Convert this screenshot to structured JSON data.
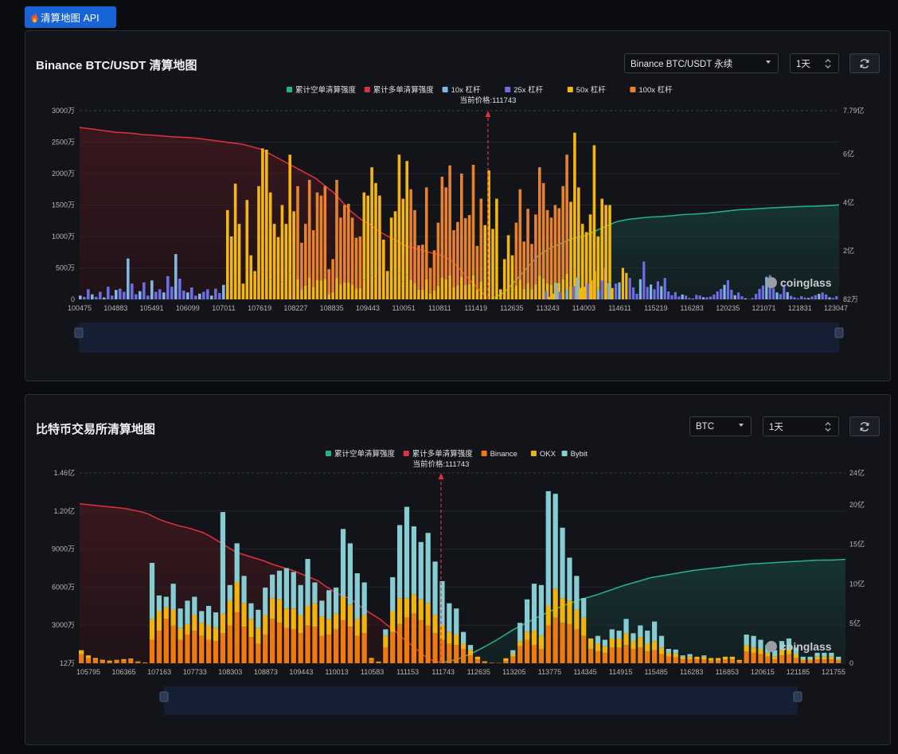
{
  "api_button": {
    "label": "清算地图 API",
    "icon": "flame-icon"
  },
  "watermark": "coinglass",
  "panel1": {
    "title": "Binance BTC/USDT 清算地图",
    "pair_select": "Binance BTC/USDT 永续",
    "range_select": "1天",
    "refresh_icon": "refresh-icon"
  },
  "panel2": {
    "title": "比特币交易所清算地图",
    "coin_select": "BTC",
    "range_select": "1天",
    "refresh_icon": "refresh-icon"
  },
  "colors": {
    "short": "#24b38a",
    "long": "#e0323e",
    "lev10": "#7fb6e2",
    "lev25": "#6d6ee6",
    "lev50": "#f4b70f",
    "lev100": "#e8822c",
    "binance": "#f07a12",
    "okx": "#f0b40a",
    "bybit": "#85cdd3"
  },
  "chart_data": [
    {
      "type": "bar",
      "current_price_label": "当前价格:111743",
      "current_price": 111743,
      "legend": [
        "累计空单清算强度",
        "累计多单清算强度",
        "10x 杠杆",
        "25x 杠杆",
        "50x 杠杆",
        "100x 杠杆"
      ],
      "y_left_ticks": [
        "0",
        "500万",
        "1000万",
        "1500万",
        "2000万",
        "2500万",
        "3000万"
      ],
      "y_left_max": 3000,
      "y_right_ticks": [
        "82万",
        "2亿",
        "4亿",
        "6亿",
        "7.79亿"
      ],
      "y_right_values": [
        0.0082,
        2,
        4,
        6,
        7.79
      ],
      "y_right_max": 7.79,
      "x_ticks": [
        "100475",
        "104883",
        "105491",
        "106099",
        "107011",
        "107619",
        "108227",
        "108835",
        "109443",
        "110051",
        "110811",
        "111419",
        "112635",
        "113243",
        "114003",
        "114611",
        "115219",
        "116283",
        "120235",
        "121071",
        "121831",
        "123047"
      ],
      "x_min": 100475,
      "x_max": 123047,
      "bars_low": [
        60,
        40,
        160,
        80,
        40,
        120,
        30,
        200,
        60,
        150,
        170,
        120,
        650,
        250,
        80,
        130,
        270,
        60,
        300,
        120,
        160,
        110,
        370,
        200,
        720,
        330,
        140,
        110,
        190,
        60,
        90,
        120,
        160,
        60,
        170,
        100,
        230
      ],
      "bars_high": [
        130,
        40,
        90,
        260,
        120,
        100,
        160,
        200,
        210,
        350,
        180,
        200,
        250,
        300,
        450,
        150,
        300,
        500,
        260,
        180,
        250,
        270,
        500,
        420,
        340,
        190,
        90,
        320,
        600,
        360,
        430,
        290,
        520,
        380,
        620,
        230,
        120,
        210,
        80,
        140,
        110,
        40,
        20,
        130,
        110,
        60,
        60,
        80,
        140,
        230,
        300,
        420,
        550,
        280,
        120,
        200,
        90,
        30,
        10,
        40,
        160,
        300,
        400,
        650,
        700,
        320,
        200,
        150,
        420,
        210,
        100,
        60,
        30,
        90,
        50,
        40,
        80,
        120,
        160,
        200,
        140,
        60,
        40,
        90,
        30
      ],
      "bars_mid": [
        1420,
        1000,
        1840,
        1200,
        250,
        1580,
        700,
        450,
        1800,
        2400,
        2380,
        1700,
        1200,
        990,
        1500,
        1200,
        2300,
        1400,
        1800,
        900,
        1200,
        1900,
        1100,
        1700,
        1650,
        1800,
        480,
        640,
        1900,
        1300,
        1500,
        1520,
        1300,
        980,
        1000,
        1700,
        1650,
        2100,
        1850,
        1650,
        950,
        450,
        1300,
        1400,
        2300,
        1600,
        2200,
        1750,
        1420,
        860,
        870,
        1780,
        500,
        780,
        1220,
        1950,
        1780,
        2130,
        1100,
        1230,
        2000,
        1290,
        1340,
        2140,
        850,
        1600,
        1180,
        2050,
        1120,
        1600,
        160,
        640,
        1020,
        700,
        1220,
        1750,
        920,
        1440,
        880,
        1350,
        2100,
        1850,
        1420,
        1300,
        1500,
        1450,
        1800,
        2300,
        1550,
        2650,
        1780,
        1200,
        1070,
        1350,
        2450,
        1000,
        1600,
        1500,
        1500,
        1200,
        1100
      ],
      "long_cum_series_yi": [
        7.1,
        7.05,
        7.0,
        6.95,
        6.9,
        6.88,
        6.85,
        6.8,
        6.78,
        6.75,
        6.72,
        6.7,
        6.68,
        6.65,
        6.6,
        6.55,
        6.5,
        6.45,
        6.4,
        6.3,
        6.2,
        6.0,
        5.8,
        5.6,
        5.4,
        5.2,
        5.0,
        4.7,
        4.4,
        4.0,
        3.6,
        3.3,
        3.1,
        2.8,
        2.6,
        2.4,
        2.2,
        2.1,
        2.0,
        1.9,
        1.8,
        1.6,
        1.2,
        0.8,
        0.4,
        0.05
      ],
      "short_cum_series_yi": [
        0.05,
        0.3,
        0.8,
        1.3,
        1.8,
        2.1,
        2.3,
        2.5,
        2.6,
        2.8,
        3.0,
        3.2,
        3.3,
        3.35,
        3.4,
        3.42,
        3.45,
        3.5,
        3.52,
        3.55,
        3.6,
        3.65,
        3.7,
        3.72,
        3.75,
        3.78,
        3.8,
        3.82,
        3.84,
        3.85,
        3.87,
        3.9
      ]
    },
    {
      "type": "bar",
      "current_price_label": "当前价格:111743",
      "current_price": 111743,
      "legend": [
        "累计空单清算强度",
        "累计多单清算强度",
        "Binance",
        "OKX",
        "Bybit"
      ],
      "y_left_ticks": [
        "12万",
        "3000万",
        "6000万",
        "9000万",
        "1.20亿",
        "1.46亿"
      ],
      "y_left_max": 14600,
      "y_right_ticks": [
        "0",
        "5亿",
        "10亿",
        "15亿",
        "20亿",
        "24亿"
      ],
      "y_right_values": [
        0,
        5,
        10,
        15,
        20,
        24
      ],
      "y_right_max": 24,
      "x_ticks": [
        "105795",
        "106365",
        "107163",
        "107733",
        "108303",
        "108873",
        "109443",
        "110013",
        "110583",
        "111153",
        "111743",
        "112635",
        "113205",
        "113775",
        "114345",
        "114915",
        "115485",
        "116283",
        "116853",
        "120615",
        "121185",
        "121755"
      ],
      "binance_values": [
        700,
        400,
        300,
        180,
        120,
        200,
        210,
        300,
        110,
        40,
        1800,
        2500,
        3400,
        2900,
        1800,
        2200,
        2500,
        2100,
        1800,
        1700,
        2300,
        2900,
        3900,
        2800,
        2000,
        1500,
        2200,
        3400,
        3100,
        2700,
        2600,
        2300,
        2900,
        2800,
        2100,
        2200,
        2600,
        3300,
        2800,
        2100,
        2300,
        300,
        90,
        1200,
        2400,
        3000,
        3500,
        3800,
        3300,
        2900,
        2300,
        1800,
        1500,
        1400,
        1100,
        600,
        300,
        100,
        40,
        20,
        180,
        500,
        1300,
        1800,
        1400,
        1100,
        2900,
        3500,
        3100,
        3000,
        2600,
        2100,
        1100,
        900,
        800,
        1200,
        1200,
        1400,
        1100,
        1200,
        900,
        1000,
        700,
        500,
        450,
        300,
        300,
        300,
        300,
        200,
        200,
        300,
        300,
        150,
        900,
        800,
        700,
        500,
        300,
        600,
        700,
        400,
        200,
        200,
        300,
        300,
        300,
        200
      ],
      "okx_values": [
        300,
        200,
        100,
        80,
        80,
        60,
        100,
        60,
        30,
        20,
        1600,
        1500,
        900,
        1200,
        900,
        800,
        1200,
        1000,
        1100,
        1000,
        1500,
        1900,
        2300,
        1800,
        1400,
        1200,
        1500,
        1600,
        1800,
        1500,
        1600,
        1400,
        1500,
        1800,
        1500,
        1200,
        1200,
        1800,
        1700,
        1300,
        1400,
        100,
        40,
        900,
        1600,
        2000,
        1500,
        1500,
        1600,
        1700,
        1400,
        1100,
        900,
        800,
        400,
        400,
        200,
        50,
        0,
        0,
        200,
        200,
        400,
        600,
        1100,
        1000,
        1500,
        2200,
        1900,
        1800,
        1500,
        1400,
        800,
        600,
        500,
        700,
        700,
        900,
        600,
        800,
        600,
        700,
        500,
        300,
        300,
        200,
        200,
        200,
        200,
        200,
        200,
        200,
        200,
        100,
        500,
        400,
        400,
        300,
        200,
        400,
        400,
        300,
        100,
        100,
        200,
        200,
        200,
        100
      ],
      "bybit_values": [
        0,
        0,
        0,
        0,
        0,
        0,
        0,
        0,
        0,
        0,
        4300,
        1200,
        800,
        2000,
        1500,
        1800,
        1400,
        900,
        1500,
        1200,
        7800,
        1200,
        3000,
        2100,
        1200,
        1400,
        2100,
        1800,
        2200,
        3100,
        2800,
        2300,
        3600,
        1600,
        1200,
        2200,
        2000,
        5200,
        4700,
        3500,
        2500,
        0,
        0,
        500,
        2600,
        5600,
        7000,
        5200,
        4400,
        5400,
        4100,
        3400,
        2200,
        2000,
        900,
        400,
        0,
        0,
        0,
        0,
        0,
        300,
        1400,
        2500,
        3600,
        3900,
        8800,
        7300,
        5400,
        3300,
        2600,
        1500,
        0,
        600,
        500,
        700,
        600,
        1100,
        600,
        900,
        1000,
        1500,
        900,
        300,
        300,
        100,
        200,
        0,
        100,
        0,
        0,
        0,
        0,
        0,
        800,
        900,
        700,
        600,
        500,
        700,
        800,
        500,
        200,
        200,
        300,
        300,
        300,
        200
      ],
      "long_cum_series_yi": [
        20.1,
        20.0,
        19.9,
        19.8,
        19.7,
        19.6,
        19.5,
        19.3,
        19.1,
        18.8,
        18.3,
        17.9,
        17.6,
        17.3,
        17.1,
        16.8,
        16.5,
        16.0,
        15.4,
        14.8,
        14.2,
        13.8,
        13.5,
        13.2,
        12.9,
        12.5,
        12.2,
        11.9,
        11.6,
        11.2,
        10.8,
        10.4,
        9.7,
        9.1,
        8.6,
        8.2,
        7.6,
        6.8,
        6.2,
        5.6,
        4.8,
        4.1,
        3.2,
        2.4,
        1.6,
        0.8,
        0.3,
        0.1
      ],
      "short_cum_series_yi": [
        0.1,
        0.5,
        1.2,
        2.1,
        3.1,
        4.2,
        5.1,
        6.0,
        6.8,
        7.5,
        8.1,
        8.6,
        9.2,
        9.8,
        10.3,
        10.8,
        11.1,
        11.4,
        11.7,
        11.9,
        12.1,
        12.3,
        12.5,
        12.6,
        12.7,
        12.8,
        12.9,
        13.0,
        13.0,
        13.1
      ]
    }
  ]
}
